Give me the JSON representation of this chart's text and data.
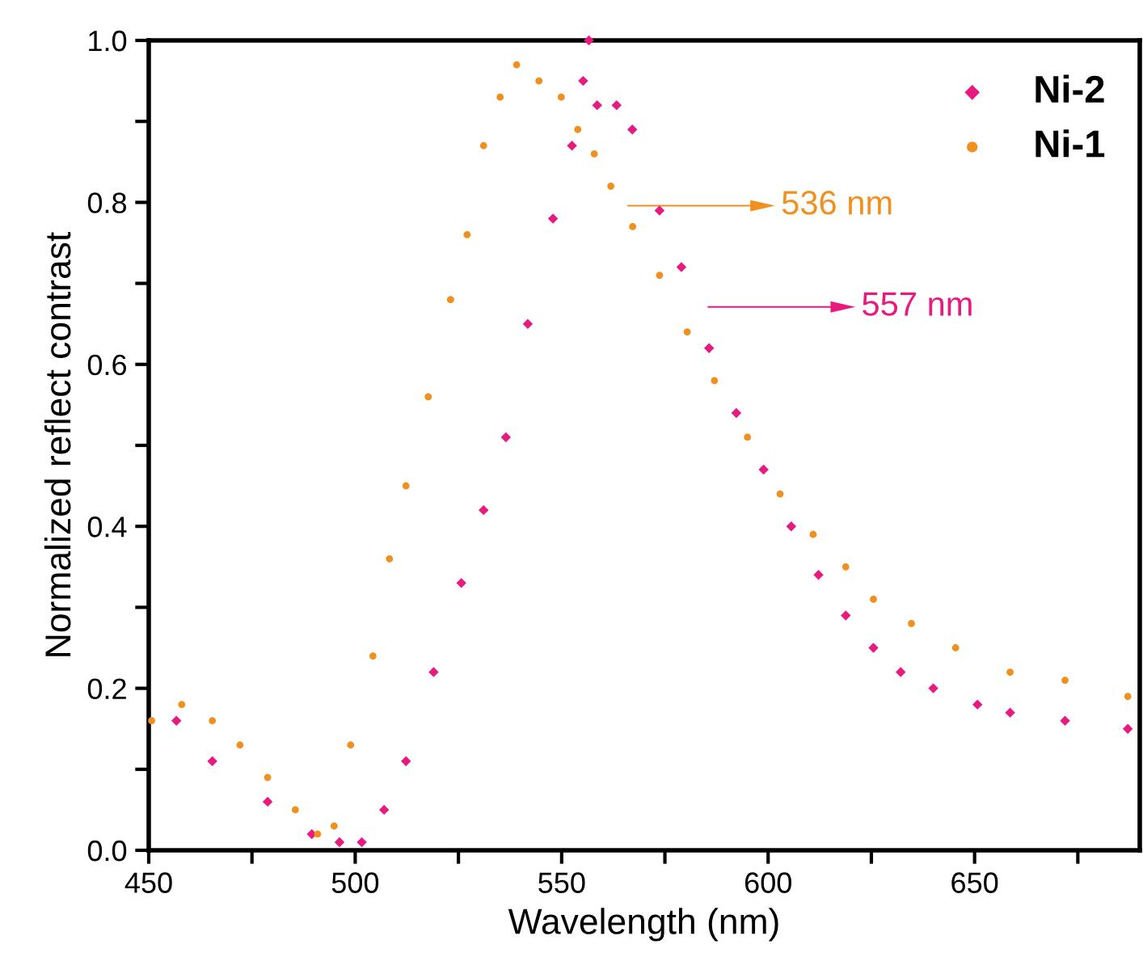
{
  "chart_data": {
    "type": "scatter",
    "xlabel": "Wavelength (nm)",
    "ylabel": "Normalized reflect contrast",
    "xlim": [
      450,
      690
    ],
    "ylim": [
      0,
      1.0
    ],
    "xticks": [
      450,
      {
        "value": 475,
        "label": null
      },
      500,
      {
        "value": 525,
        "label": null
      },
      550,
      {
        "value": 575,
        "label": null
      },
      600,
      {
        "value": 625,
        "label": null
      },
      650,
      {
        "value": 675,
        "label": null
      }
    ],
    "yticks": [
      {
        "value": 0,
        "label": "0.0"
      },
      {
        "value": 0.1,
        "label": null
      },
      0.2,
      {
        "value": 0.3,
        "label": null
      },
      0.4,
      {
        "value": 0.5,
        "label": null
      },
      0.6,
      {
        "value": 0.7,
        "label": null
      },
      0.8,
      {
        "value": 0.9,
        "label": null
      },
      {
        "value": 1.0,
        "label": "1.0"
      }
    ],
    "grid": false,
    "legend": "top right",
    "series": [
      {
        "name": "Ni-2",
        "color": "#e8197f",
        "marker": "diamond",
        "x": [
          456.7,
          465.4,
          478.8,
          489.5,
          496.2,
          501.6,
          507.0,
          512.3,
          519.0,
          525.7,
          531.1,
          536.5,
          541.8,
          547.9,
          552.5,
          555.2,
          556.6,
          558.6,
          563.3,
          567.1,
          573.7,
          579.0,
          585.7,
          592.3,
          598.9,
          605.6,
          612.2,
          618.8,
          625.5,
          632.1,
          640.0,
          650.7,
          658.6,
          671.9,
          687.1
        ],
        "values": [
          0.16,
          0.11,
          0.06,
          0.02,
          0.01,
          0.01,
          0.05,
          0.11,
          0.22,
          0.33,
          0.42,
          0.51,
          0.65,
          0.78,
          0.87,
          0.95,
          1.0,
          0.92,
          0.92,
          0.89,
          0.79,
          0.72,
          0.62,
          0.54,
          0.47,
          0.4,
          0.34,
          0.29,
          0.25,
          0.22,
          0.2,
          0.18,
          0.17,
          0.16,
          0.15
        ]
      },
      {
        "name": "Ni-1",
        "color": "#f0901e",
        "marker": "circle",
        "x": [
          450.7,
          458.0,
          465.4,
          472.1,
          478.8,
          485.5,
          490.9,
          494.9,
          498.9,
          504.3,
          508.3,
          512.3,
          517.7,
          523.1,
          527.1,
          531.1,
          535.1,
          539.1,
          544.5,
          549.9,
          553.9,
          557.9,
          561.9,
          567.2,
          573.7,
          580.4,
          587.0,
          595.0,
          602.9,
          610.9,
          618.8,
          625.5,
          634.7,
          645.4,
          658.6,
          671.9,
          687.1
        ],
        "values": [
          0.16,
          0.18,
          0.16,
          0.13,
          0.09,
          0.05,
          0.02,
          0.03,
          0.13,
          0.24,
          0.36,
          0.45,
          0.56,
          0.68,
          0.76,
          0.87,
          0.93,
          0.97,
          0.95,
          0.93,
          0.89,
          0.86,
          0.82,
          0.77,
          0.71,
          0.64,
          0.58,
          0.51,
          0.44,
          0.39,
          0.35,
          0.31,
          0.28,
          0.25,
          0.22,
          0.21,
          0.19
        ]
      }
    ],
    "annotations": [
      "536 nm",
      "557 nm"
    ]
  }
}
